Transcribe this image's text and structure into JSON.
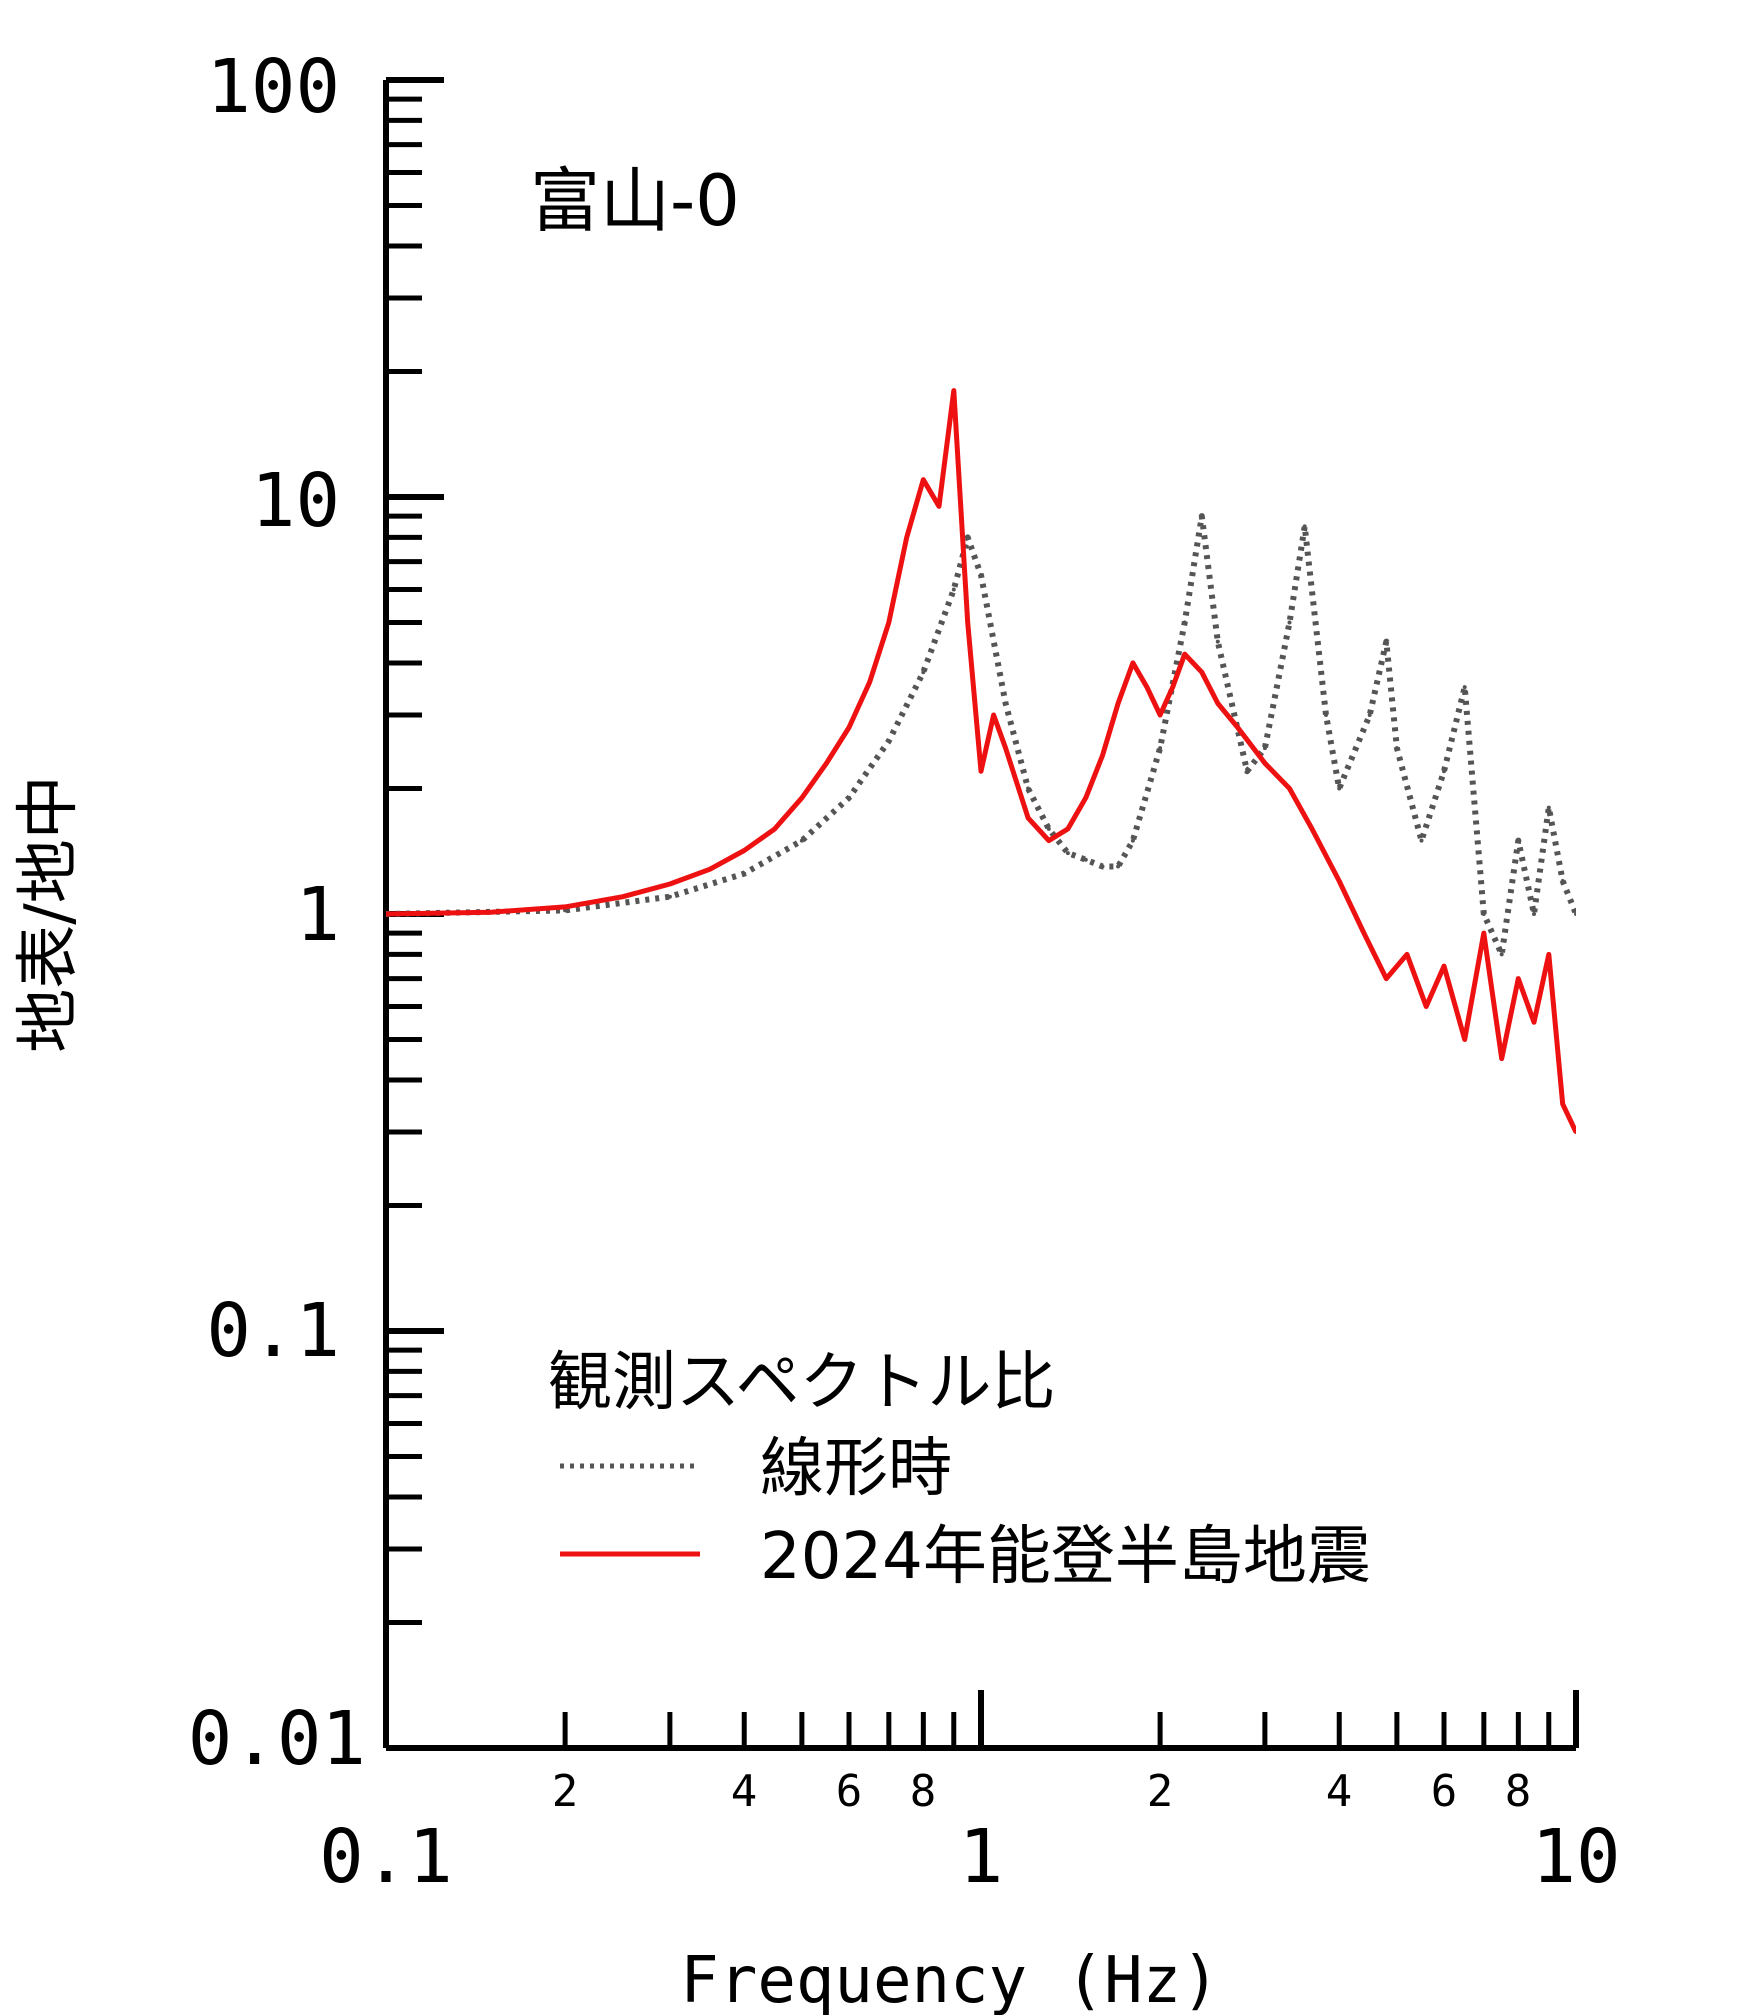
{
  "chart_data": {
    "type": "line",
    "title": "富山-0",
    "xlabel": "Frequency (Hz)",
    "ylabel": "地表/地中",
    "xscale": "log",
    "yscale": "log",
    "xlim": [
      0.1,
      10
    ],
    "ylim": [
      0.01,
      100
    ],
    "x_major_ticks": [
      "0.1",
      "1",
      "10"
    ],
    "x_minor_labels": [
      "2",
      "4",
      "6",
      "8",
      "2",
      "4",
      "6",
      "8"
    ],
    "y_major_ticks": [
      "100",
      "10",
      "1",
      "0.1",
      "0.01"
    ],
    "grid": false,
    "legend": {
      "placement": "lower-center",
      "heading": "観測スペクトル比",
      "entries": [
        "線形時",
        "2024年能登半島地震"
      ]
    },
    "series": [
      {
        "name": "線形時",
        "style": "dotted",
        "color": "#555555",
        "x": [
          0.1,
          0.2,
          0.3,
          0.4,
          0.5,
          0.6,
          0.7,
          0.8,
          0.9,
          0.95,
          1.0,
          1.1,
          1.2,
          1.3,
          1.4,
          1.5,
          1.6,
          1.7,
          1.8,
          2.0,
          2.2,
          2.35,
          2.5,
          2.8,
          3.0,
          3.3,
          3.5,
          3.8,
          4.0,
          4.5,
          4.8,
          5.0,
          5.5,
          6.0,
          6.5,
          7.0,
          7.5,
          8.0,
          8.5,
          9.0,
          9.5,
          10.0
        ],
        "y": [
          1.0,
          1.02,
          1.1,
          1.25,
          1.5,
          1.9,
          2.6,
          3.8,
          6.0,
          8.0,
          6.5,
          3.2,
          2.0,
          1.6,
          1.4,
          1.35,
          1.3,
          1.3,
          1.5,
          2.5,
          5.0,
          9.0,
          4.5,
          2.2,
          2.5,
          5.0,
          8.5,
          3.0,
          2.0,
          3.0,
          4.5,
          2.5,
          1.5,
          2.2,
          3.5,
          1.0,
          0.8,
          1.5,
          1.0,
          1.8,
          1.2,
          1.0
        ]
      },
      {
        "name": "2024年能登半島地震",
        "style": "solid",
        "color": "#ee1111",
        "x": [
          0.1,
          0.15,
          0.2,
          0.25,
          0.3,
          0.35,
          0.4,
          0.45,
          0.5,
          0.55,
          0.6,
          0.65,
          0.7,
          0.75,
          0.8,
          0.85,
          0.9,
          0.95,
          1.0,
          1.05,
          1.1,
          1.2,
          1.3,
          1.4,
          1.5,
          1.6,
          1.7,
          1.8,
          1.9,
          2.0,
          2.1,
          2.2,
          2.35,
          2.5,
          2.7,
          3.0,
          3.3,
          3.6,
          4.0,
          4.4,
          4.8,
          5.2,
          5.6,
          6.0,
          6.5,
          7.0,
          7.5,
          8.0,
          8.5,
          9.0,
          9.5,
          10.0
        ],
        "y": [
          1.0,
          1.01,
          1.04,
          1.1,
          1.18,
          1.28,
          1.42,
          1.6,
          1.9,
          2.3,
          2.8,
          3.6,
          5.0,
          8.0,
          11.0,
          9.5,
          18.0,
          5.0,
          2.2,
          3.0,
          2.5,
          1.7,
          1.5,
          1.6,
          1.9,
          2.4,
          3.2,
          4.0,
          3.5,
          3.0,
          3.5,
          4.2,
          3.8,
          3.2,
          2.8,
          2.3,
          2.0,
          1.6,
          1.2,
          0.9,
          0.7,
          0.8,
          0.6,
          0.75,
          0.5,
          0.9,
          0.45,
          0.7,
          0.55,
          0.8,
          0.35,
          0.3
        ]
      }
    ]
  }
}
